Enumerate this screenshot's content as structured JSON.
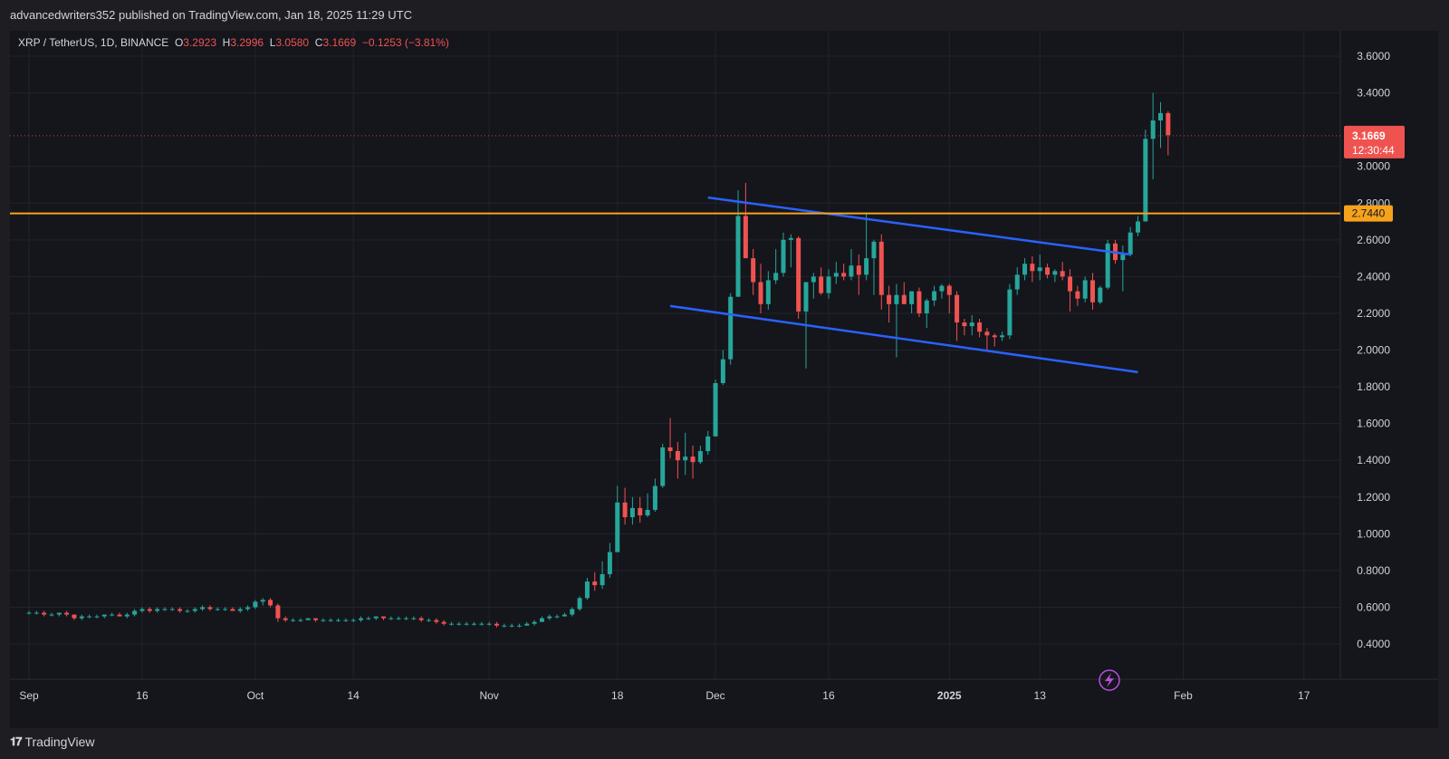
{
  "header": {
    "published_line": "advancedwriters352 published on TradingView.com, Jan 18, 2025 11:29 UTC"
  },
  "legend": {
    "symbol": "XRP / TetherUS, 1D, BINANCE",
    "o_label": "O",
    "o_value": "3.2923",
    "h_label": "H",
    "h_value": "3.2996",
    "l_label": "L",
    "l_value": "3.0580",
    "c_label": "C",
    "c_value": "3.1669",
    "change": "−0.1253 (−3.81%)"
  },
  "price_badge": {
    "price": "3.1669",
    "countdown": "12:30:44"
  },
  "level_badge": {
    "price": "2.7440"
  },
  "footer": {
    "brand": "TradingView"
  },
  "colors": {
    "up": "#26a69a",
    "down": "#ef5350",
    "level": "#f7a21b",
    "trendline": "#2962ff",
    "axis_text": "#d1d4dc",
    "grid": "#22232b",
    "background": "#15151c"
  },
  "chart_data": {
    "type": "candlestick",
    "y_ticks": [
      "3.6000",
      "3.4000",
      "3.0000",
      "2.8000",
      "2.6000",
      "2.4000",
      "2.2000",
      "2.0000",
      "1.8000",
      "1.6000",
      "1.4000",
      "1.2000",
      "1.0000",
      "0.8000",
      "0.6000",
      "0.4000"
    ],
    "ylim": [
      0.25,
      3.78
    ],
    "x_ticks": [
      {
        "label": "Sep",
        "day": 0
      },
      {
        "label": "16",
        "day": 15
      },
      {
        "label": "Oct",
        "day": 30
      },
      {
        "label": "14",
        "day": 43
      },
      {
        "label": "Nov",
        "day": 61
      },
      {
        "label": "18",
        "day": 78
      },
      {
        "label": "Dec",
        "day": 91
      },
      {
        "label": "16",
        "day": 106
      },
      {
        "label": "2025",
        "day": 122
      },
      {
        "label": "13",
        "day": 134
      },
      {
        "label": "Feb",
        "day": 153
      },
      {
        "label": "17",
        "day": 169
      }
    ],
    "horizontal_level": 2.744,
    "last_price": 3.1669,
    "trendlines": [
      {
        "from": [
          90,
          2.83
        ],
        "to": [
          146,
          2.52
        ]
      },
      {
        "from": [
          85,
          2.24
        ],
        "to": [
          147,
          1.88
        ]
      }
    ],
    "candles": [
      [
        0,
        0.57,
        0.58,
        0.56,
        0.57
      ],
      [
        1,
        0.57,
        0.58,
        0.56,
        0.57
      ],
      [
        2,
        0.57,
        0.58,
        0.55,
        0.56
      ],
      [
        3,
        0.56,
        0.57,
        0.55,
        0.56
      ],
      [
        4,
        0.56,
        0.57,
        0.55,
        0.57
      ],
      [
        5,
        0.57,
        0.58,
        0.55,
        0.56
      ],
      [
        6,
        0.56,
        0.56,
        0.53,
        0.54
      ],
      [
        7,
        0.54,
        0.56,
        0.53,
        0.55
      ],
      [
        8,
        0.55,
        0.56,
        0.54,
        0.55
      ],
      [
        9,
        0.55,
        0.56,
        0.54,
        0.55
      ],
      [
        10,
        0.55,
        0.56,
        0.54,
        0.56
      ],
      [
        11,
        0.56,
        0.57,
        0.55,
        0.56
      ],
      [
        12,
        0.56,
        0.57,
        0.55,
        0.55
      ],
      [
        13,
        0.55,
        0.57,
        0.54,
        0.56
      ],
      [
        14,
        0.56,
        0.59,
        0.55,
        0.58
      ],
      [
        15,
        0.58,
        0.6,
        0.57,
        0.59
      ],
      [
        16,
        0.59,
        0.6,
        0.57,
        0.58
      ],
      [
        17,
        0.58,
        0.6,
        0.57,
        0.59
      ],
      [
        18,
        0.59,
        0.6,
        0.58,
        0.59
      ],
      [
        19,
        0.59,
        0.6,
        0.58,
        0.59
      ],
      [
        20,
        0.59,
        0.6,
        0.57,
        0.58
      ],
      [
        21,
        0.58,
        0.59,
        0.57,
        0.58
      ],
      [
        22,
        0.58,
        0.6,
        0.57,
        0.59
      ],
      [
        23,
        0.59,
        0.61,
        0.58,
        0.6
      ],
      [
        24,
        0.6,
        0.61,
        0.58,
        0.59
      ],
      [
        25,
        0.59,
        0.6,
        0.58,
        0.59
      ],
      [
        26,
        0.59,
        0.6,
        0.58,
        0.59
      ],
      [
        27,
        0.59,
        0.6,
        0.58,
        0.58
      ],
      [
        28,
        0.58,
        0.6,
        0.57,
        0.59
      ],
      [
        29,
        0.59,
        0.61,
        0.58,
        0.6
      ],
      [
        30,
        0.6,
        0.64,
        0.59,
        0.63
      ],
      [
        31,
        0.63,
        0.65,
        0.61,
        0.64
      ],
      [
        32,
        0.64,
        0.65,
        0.6,
        0.61
      ],
      [
        33,
        0.61,
        0.62,
        0.52,
        0.54
      ],
      [
        34,
        0.54,
        0.55,
        0.52,
        0.53
      ],
      [
        35,
        0.53,
        0.54,
        0.52,
        0.53
      ],
      [
        36,
        0.53,
        0.54,
        0.52,
        0.53
      ],
      [
        37,
        0.53,
        0.54,
        0.53,
        0.54
      ],
      [
        38,
        0.54,
        0.54,
        0.52,
        0.53
      ],
      [
        39,
        0.53,
        0.54,
        0.52,
        0.53
      ],
      [
        40,
        0.53,
        0.54,
        0.52,
        0.53
      ],
      [
        41,
        0.53,
        0.54,
        0.52,
        0.53
      ],
      [
        42,
        0.53,
        0.54,
        0.52,
        0.53
      ],
      [
        43,
        0.53,
        0.54,
        0.52,
        0.53
      ],
      [
        44,
        0.53,
        0.55,
        0.52,
        0.54
      ],
      [
        45,
        0.54,
        0.55,
        0.53,
        0.54
      ],
      [
        46,
        0.54,
        0.55,
        0.53,
        0.55
      ],
      [
        47,
        0.55,
        0.55,
        0.53,
        0.54
      ],
      [
        48,
        0.54,
        0.55,
        0.53,
        0.54
      ],
      [
        49,
        0.54,
        0.55,
        0.53,
        0.54
      ],
      [
        50,
        0.54,
        0.55,
        0.53,
        0.54
      ],
      [
        51,
        0.54,
        0.55,
        0.53,
        0.54
      ],
      [
        52,
        0.54,
        0.55,
        0.52,
        0.53
      ],
      [
        53,
        0.53,
        0.54,
        0.52,
        0.53
      ],
      [
        54,
        0.53,
        0.54,
        0.51,
        0.52
      ],
      [
        55,
        0.52,
        0.53,
        0.5,
        0.51
      ],
      [
        56,
        0.51,
        0.52,
        0.5,
        0.51
      ],
      [
        57,
        0.51,
        0.52,
        0.5,
        0.51
      ],
      [
        58,
        0.51,
        0.52,
        0.5,
        0.51
      ],
      [
        59,
        0.51,
        0.52,
        0.5,
        0.51
      ],
      [
        60,
        0.51,
        0.52,
        0.5,
        0.51
      ],
      [
        61,
        0.51,
        0.52,
        0.5,
        0.51
      ],
      [
        62,
        0.51,
        0.52,
        0.49,
        0.5
      ],
      [
        63,
        0.5,
        0.51,
        0.49,
        0.5
      ],
      [
        64,
        0.5,
        0.51,
        0.49,
        0.5
      ],
      [
        65,
        0.5,
        0.51,
        0.49,
        0.5
      ],
      [
        66,
        0.5,
        0.52,
        0.5,
        0.51
      ],
      [
        67,
        0.51,
        0.53,
        0.5,
        0.52
      ],
      [
        68,
        0.52,
        0.55,
        0.52,
        0.54
      ],
      [
        69,
        0.54,
        0.56,
        0.53,
        0.55
      ],
      [
        70,
        0.55,
        0.56,
        0.54,
        0.55
      ],
      [
        71,
        0.55,
        0.57,
        0.55,
        0.56
      ],
      [
        72,
        0.56,
        0.6,
        0.55,
        0.59
      ],
      [
        73,
        0.59,
        0.66,
        0.58,
        0.65
      ],
      [
        74,
        0.65,
        0.76,
        0.64,
        0.74
      ],
      [
        75,
        0.74,
        0.79,
        0.69,
        0.72
      ],
      [
        76,
        0.72,
        0.85,
        0.7,
        0.78
      ],
      [
        77,
        0.78,
        0.95,
        0.76,
        0.9
      ],
      [
        78,
        0.9,
        1.26,
        0.9,
        1.17
      ],
      [
        79,
        1.17,
        1.25,
        1.05,
        1.09
      ],
      [
        80,
        1.09,
        1.2,
        1.05,
        1.14
      ],
      [
        81,
        1.14,
        1.2,
        1.06,
        1.1
      ],
      [
        82,
        1.1,
        1.22,
        1.09,
        1.13
      ],
      [
        83,
        1.13,
        1.3,
        1.12,
        1.26
      ],
      [
        84,
        1.26,
        1.49,
        1.25,
        1.47
      ],
      [
        85,
        1.47,
        1.63,
        1.41,
        1.45
      ],
      [
        86,
        1.45,
        1.5,
        1.3,
        1.4
      ],
      [
        87,
        1.4,
        1.55,
        1.32,
        1.42
      ],
      [
        88,
        1.42,
        1.48,
        1.3,
        1.39
      ],
      [
        89,
        1.39,
        1.48,
        1.38,
        1.45
      ],
      [
        90,
        1.45,
        1.56,
        1.43,
        1.53
      ],
      [
        91,
        1.53,
        1.84,
        1.53,
        1.82
      ],
      [
        92,
        1.82,
        2.0,
        1.81,
        1.95
      ],
      [
        93,
        1.95,
        2.31,
        1.92,
        2.29
      ],
      [
        94,
        2.29,
        2.87,
        2.29,
        2.73
      ],
      [
        95,
        2.73,
        2.91,
        2.5,
        2.5
      ],
      [
        96,
        2.5,
        2.55,
        2.3,
        2.37
      ],
      [
        97,
        2.37,
        2.47,
        2.2,
        2.25
      ],
      [
        98,
        2.25,
        2.43,
        2.22,
        2.38
      ],
      [
        99,
        2.38,
        2.55,
        2.36,
        2.42
      ],
      [
        100,
        2.42,
        2.64,
        2.4,
        2.6
      ],
      [
        101,
        2.6,
        2.63,
        2.45,
        2.61
      ],
      [
        102,
        2.61,
        2.62,
        2.17,
        2.21
      ],
      [
        103,
        2.21,
        2.37,
        1.9,
        2.37
      ],
      [
        104,
        2.37,
        2.42,
        2.28,
        2.4
      ],
      [
        105,
        2.4,
        2.45,
        2.3,
        2.31
      ],
      [
        106,
        2.31,
        2.44,
        2.28,
        2.4
      ],
      [
        107,
        2.4,
        2.48,
        2.36,
        2.42
      ],
      [
        108,
        2.42,
        2.47,
        2.38,
        2.4
      ],
      [
        109,
        2.4,
        2.55,
        2.38,
        2.46
      ],
      [
        110,
        2.46,
        2.52,
        2.3,
        2.41
      ],
      [
        111,
        2.41,
        2.75,
        2.38,
        2.5
      ],
      [
        112,
        2.5,
        2.6,
        2.3,
        2.59
      ],
      [
        113,
        2.59,
        2.63,
        2.22,
        2.3
      ],
      [
        114,
        2.3,
        2.35,
        2.15,
        2.25
      ],
      [
        115,
        2.25,
        2.36,
        1.96,
        2.3
      ],
      [
        116,
        2.3,
        2.37,
        2.25,
        2.25
      ],
      [
        117,
        2.25,
        2.32,
        2.2,
        2.32
      ],
      [
        118,
        2.32,
        2.34,
        2.18,
        2.2
      ],
      [
        119,
        2.2,
        2.28,
        2.12,
        2.27
      ],
      [
        120,
        2.27,
        2.35,
        2.24,
        2.32
      ],
      [
        121,
        2.32,
        2.36,
        2.28,
        2.35
      ],
      [
        122,
        2.35,
        2.36,
        2.2,
        2.3
      ],
      [
        123,
        2.3,
        2.32,
        2.05,
        2.15
      ],
      [
        124,
        2.15,
        2.17,
        2.08,
        2.13
      ],
      [
        125,
        2.13,
        2.19,
        2.08,
        2.15
      ],
      [
        126,
        2.15,
        2.17,
        2.07,
        2.1
      ],
      [
        127,
        2.1,
        2.12,
        2.0,
        2.08
      ],
      [
        128,
        2.08,
        2.09,
        2.02,
        2.07
      ],
      [
        129,
        2.07,
        2.1,
        2.05,
        2.08
      ],
      [
        130,
        2.08,
        2.36,
        2.06,
        2.33
      ],
      [
        131,
        2.33,
        2.45,
        2.3,
        2.41
      ],
      [
        132,
        2.41,
        2.5,
        2.38,
        2.47
      ],
      [
        133,
        2.47,
        2.51,
        2.37,
        2.43
      ],
      [
        134,
        2.43,
        2.52,
        2.38,
        2.45
      ],
      [
        135,
        2.45,
        2.47,
        2.39,
        2.41
      ],
      [
        136,
        2.41,
        2.44,
        2.37,
        2.43
      ],
      [
        137,
        2.43,
        2.48,
        2.38,
        2.4
      ],
      [
        138,
        2.4,
        2.44,
        2.21,
        2.32
      ],
      [
        139,
        2.32,
        2.35,
        2.24,
        2.28
      ],
      [
        140,
        2.28,
        2.4,
        2.26,
        2.38
      ],
      [
        141,
        2.38,
        2.42,
        2.22,
        2.26
      ],
      [
        142,
        2.26,
        2.35,
        2.25,
        2.34
      ],
      [
        143,
        2.34,
        2.6,
        2.33,
        2.58
      ],
      [
        144,
        2.58,
        2.6,
        2.47,
        2.49
      ],
      [
        145,
        2.49,
        2.57,
        2.32,
        2.52
      ],
      [
        146,
        2.52,
        2.67,
        2.51,
        2.64
      ],
      [
        147,
        2.64,
        2.73,
        2.62,
        2.7
      ],
      [
        148,
        2.7,
        3.2,
        2.7,
        3.15
      ],
      [
        149,
        3.15,
        3.4,
        2.93,
        3.25
      ],
      [
        150,
        3.25,
        3.35,
        3.1,
        3.29
      ],
      [
        151,
        3.29,
        3.3,
        3.06,
        3.17
      ]
    ]
  }
}
